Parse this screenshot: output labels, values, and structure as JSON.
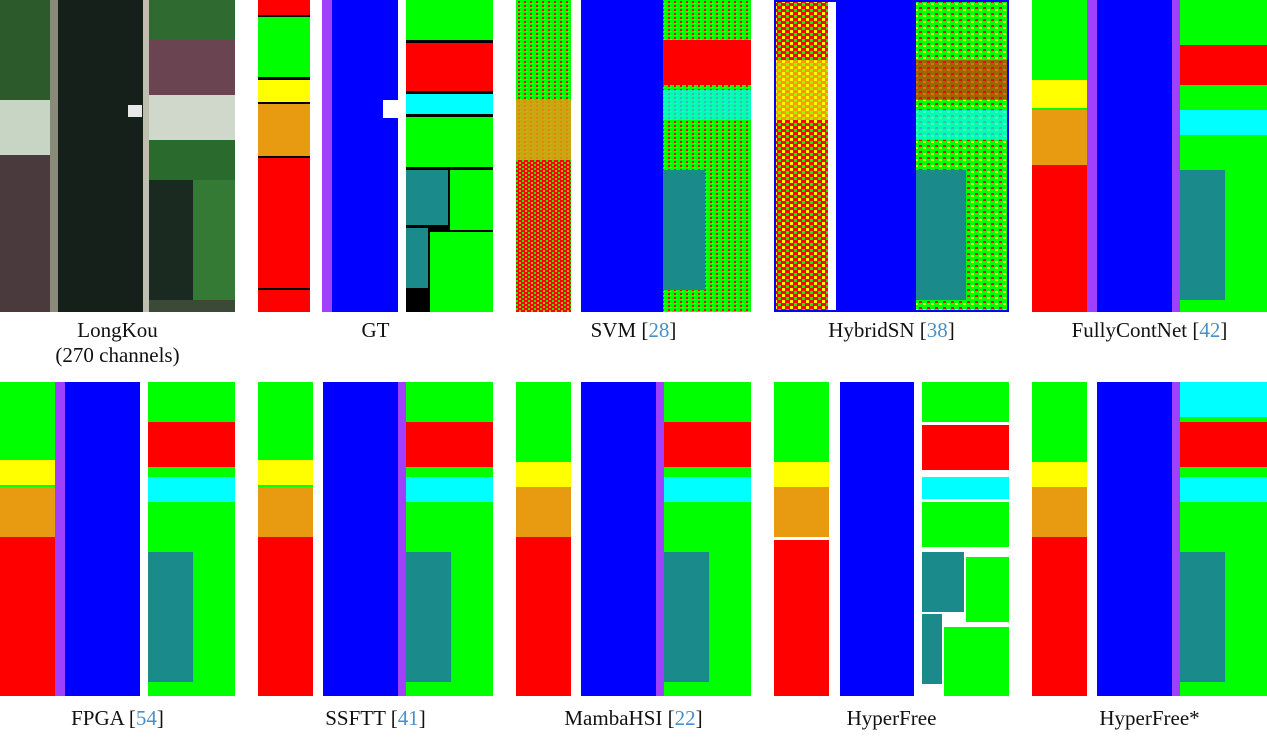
{
  "figure": {
    "panels": [
      {
        "id": "longkou",
        "caption_line1": "LongKou",
        "caption_line2": "(270 channels)",
        "kind": "rgb"
      },
      {
        "id": "gt",
        "caption": "GT",
        "kind": "gt"
      },
      {
        "id": "svm",
        "caption": "SVM [",
        "ref": "28",
        "close": "]",
        "kind": "noisy"
      },
      {
        "id": "hybridsn",
        "caption": "HybridSN [",
        "ref": "38",
        "close": "]",
        "kind": "noisy2"
      },
      {
        "id": "fullycontnet",
        "caption": "FullyContNet [",
        "ref": "42",
        "close": "]",
        "kind": "smooth"
      },
      {
        "id": "fpga",
        "caption": "FPGA [",
        "ref": "54",
        "close": "]",
        "kind": "smooth"
      },
      {
        "id": "ssftt",
        "caption": "SSFTT [",
        "ref": "41",
        "close": "]",
        "kind": "smooth"
      },
      {
        "id": "mambahsi",
        "caption": "MambaHSI [",
        "ref": "22",
        "close": "]",
        "kind": "smooth"
      },
      {
        "id": "hyperfree",
        "caption": "HyperFree",
        "kind": "clean"
      },
      {
        "id": "hyperfree-star",
        "caption": "HyperFree*",
        "kind": "smooth"
      }
    ],
    "colors": {
      "water": "#0000ff",
      "road": "#ffffff",
      "bank": "#a040ff",
      "crop_green": "#00ff00",
      "crop_red": "#ff0000",
      "crop_yellow": "#ffff00",
      "crop_orange": "#e89a10",
      "crop_teal": "#1a8a8a",
      "crop_cyan": "#00ffff"
    }
  }
}
